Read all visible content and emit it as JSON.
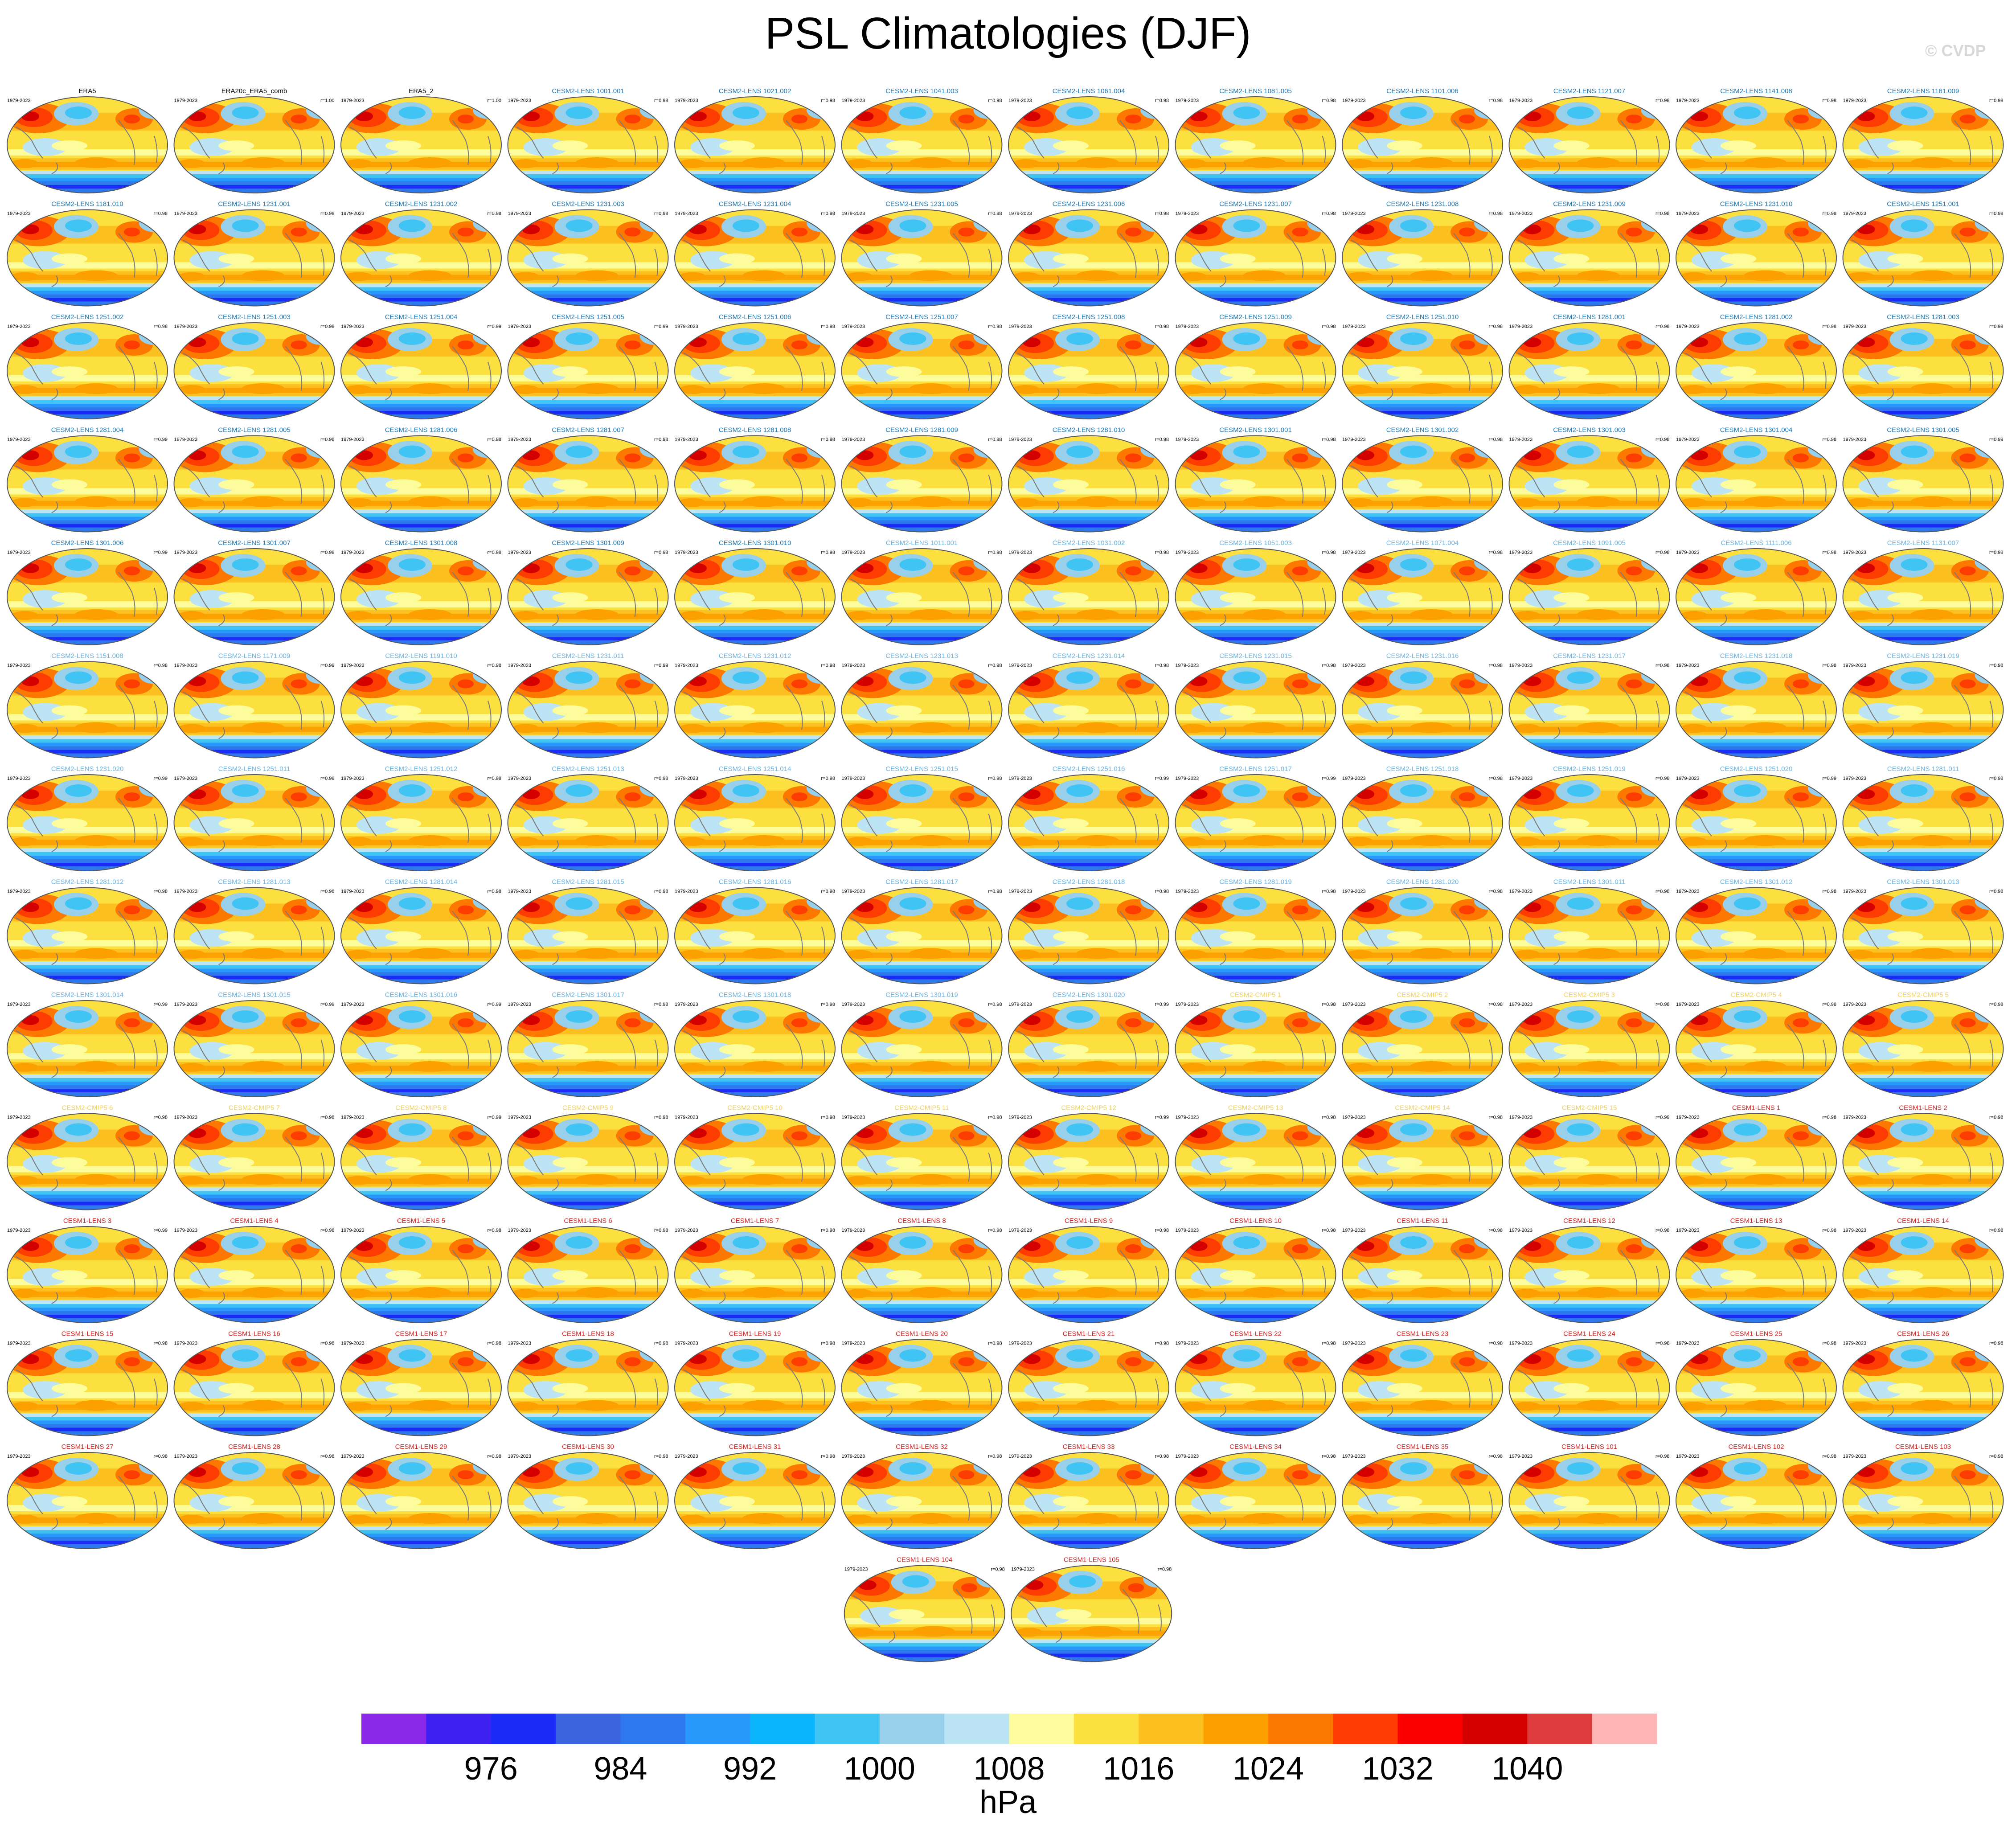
{
  "figure": {
    "title": "PSL Climatologies (DJF)",
    "credit": "© CVDP"
  },
  "chart_data": {
    "type": "heatmap",
    "title": "PSL Climatologies (DJF)",
    "panel_period": "1979-2023",
    "panels": [
      {
        "name": "ERA5",
        "r": "",
        "group": "obs"
      },
      {
        "name": "ERA20c_ERA5_comb",
        "r": "r=1.00",
        "group": "obs"
      },
      {
        "name": "ERA5_2",
        "r": "r=1.00",
        "group": "obs"
      },
      {
        "name": "CESM2-LENS 1001.001",
        "r": "r=0.98",
        "group": "cesm2"
      },
      {
        "name": "CESM2-LENS 1021.002",
        "r": "r=0.98",
        "group": "cesm2"
      },
      {
        "name": "CESM2-LENS 1041.003",
        "r": "r=0.98",
        "group": "cesm2"
      },
      {
        "name": "CESM2-LENS 1061.004",
        "r": "r=0.98",
        "group": "cesm2"
      },
      {
        "name": "CESM2-LENS 1081.005",
        "r": "r=0.98",
        "group": "cesm2"
      },
      {
        "name": "CESM2-LENS 1101.006",
        "r": "r=0.98",
        "group": "cesm2"
      },
      {
        "name": "CESM2-LENS 1121.007",
        "r": "r=0.98",
        "group": "cesm2"
      },
      {
        "name": "CESM2-LENS 1141.008",
        "r": "r=0.98",
        "group": "cesm2"
      },
      {
        "name": "CESM2-LENS 1161.009",
        "r": "r=0.98",
        "group": "cesm2"
      },
      {
        "name": "CESM2-LENS 1181.010",
        "r": "r=0.98",
        "group": "cesm2"
      },
      {
        "name": "CESM2-LENS 1231.001",
        "r": "r=0.98",
        "group": "cesm2"
      },
      {
        "name": "CESM2-LENS 1231.002",
        "r": "r=0.98",
        "group": "cesm2"
      },
      {
        "name": "CESM2-LENS 1231.003",
        "r": "r=0.98",
        "group": "cesm2"
      },
      {
        "name": "CESM2-LENS 1231.004",
        "r": "r=0.98",
        "group": "cesm2"
      },
      {
        "name": "CESM2-LENS 1231.005",
        "r": "r=0.98",
        "group": "cesm2"
      },
      {
        "name": "CESM2-LENS 1231.006",
        "r": "r=0.98",
        "group": "cesm2"
      },
      {
        "name": "CESM2-LENS 1231.007",
        "r": "r=0.98",
        "group": "cesm2"
      },
      {
        "name": "CESM2-LENS 1231.008",
        "r": "r=0.98",
        "group": "cesm2"
      },
      {
        "name": "CESM2-LENS 1231.009",
        "r": "r=0.98",
        "group": "cesm2"
      },
      {
        "name": "CESM2-LENS 1231.010",
        "r": "r=0.98",
        "group": "cesm2"
      },
      {
        "name": "CESM2-LENS 1251.001",
        "r": "r=0.98",
        "group": "cesm2"
      },
      {
        "name": "CESM2-LENS 1251.002",
        "r": "r=0.98",
        "group": "cesm2"
      },
      {
        "name": "CESM2-LENS 1251.003",
        "r": "r=0.98",
        "group": "cesm2"
      },
      {
        "name": "CESM2-LENS 1251.004",
        "r": "r=0.99",
        "group": "cesm2"
      },
      {
        "name": "CESM2-LENS 1251.005",
        "r": "r=0.99",
        "group": "cesm2"
      },
      {
        "name": "CESM2-LENS 1251.006",
        "r": "r=0.98",
        "group": "cesm2"
      },
      {
        "name": "CESM2-LENS 1251.007",
        "r": "r=0.98",
        "group": "cesm2"
      },
      {
        "name": "CESM2-LENS 1251.008",
        "r": "r=0.98",
        "group": "cesm2"
      },
      {
        "name": "CESM2-LENS 1251.009",
        "r": "r=0.98",
        "group": "cesm2"
      },
      {
        "name": "CESM2-LENS 1251.010",
        "r": "r=0.98",
        "group": "cesm2"
      },
      {
        "name": "CESM2-LENS 1281.001",
        "r": "r=0.98",
        "group": "cesm2"
      },
      {
        "name": "CESM2-LENS 1281.002",
        "r": "r=0.98",
        "group": "cesm2"
      },
      {
        "name": "CESM2-LENS 1281.003",
        "r": "r=0.98",
        "group": "cesm2"
      },
      {
        "name": "CESM2-LENS 1281.004",
        "r": "r=0.99",
        "group": "cesm2"
      },
      {
        "name": "CESM2-LENS 1281.005",
        "r": "r=0.98",
        "group": "cesm2"
      },
      {
        "name": "CESM2-LENS 1281.006",
        "r": "r=0.98",
        "group": "cesm2"
      },
      {
        "name": "CESM2-LENS 1281.007",
        "r": "r=0.98",
        "group": "cesm2"
      },
      {
        "name": "CESM2-LENS 1281.008",
        "r": "r=0.98",
        "group": "cesm2"
      },
      {
        "name": "CESM2-LENS 1281.009",
        "r": "r=0.98",
        "group": "cesm2"
      },
      {
        "name": "CESM2-LENS 1281.010",
        "r": "r=0.98",
        "group": "cesm2"
      },
      {
        "name": "CESM2-LENS 1301.001",
        "r": "r=0.98",
        "group": "cesm2"
      },
      {
        "name": "CESM2-LENS 1301.002",
        "r": "r=0.98",
        "group": "cesm2"
      },
      {
        "name": "CESM2-LENS 1301.003",
        "r": "r=0.98",
        "group": "cesm2"
      },
      {
        "name": "CESM2-LENS 1301.004",
        "r": "r=0.98",
        "group": "cesm2"
      },
      {
        "name": "CESM2-LENS 1301.005",
        "r": "r=0.99",
        "group": "cesm2"
      },
      {
        "name": "CESM2-LENS 1301.006",
        "r": "r=0.99",
        "group": "cesm2"
      },
      {
        "name": "CESM2-LENS 1301.007",
        "r": "r=0.98",
        "group": "cesm2"
      },
      {
        "name": "CESM2-LENS 1301.008",
        "r": "r=0.98",
        "group": "cesm2"
      },
      {
        "name": "CESM2-LENS 1301.009",
        "r": "r=0.98",
        "group": "cesm2"
      },
      {
        "name": "CESM2-LENS 1301.010",
        "r": "r=0.98",
        "group": "cesm2"
      },
      {
        "name": "CESM2-LENS 1011.001",
        "r": "r=0.98",
        "group": "cesm2-light"
      },
      {
        "name": "CESM2-LENS 1031.002",
        "r": "r=0.98",
        "group": "cesm2-light"
      },
      {
        "name": "CESM2-LENS 1051.003",
        "r": "r=0.98",
        "group": "cesm2-light"
      },
      {
        "name": "CESM2-LENS 1071.004",
        "r": "r=0.98",
        "group": "cesm2-light"
      },
      {
        "name": "CESM2-LENS 1091.005",
        "r": "r=0.98",
        "group": "cesm2-light"
      },
      {
        "name": "CESM2-LENS 1111.006",
        "r": "r=0.98",
        "group": "cesm2-light"
      },
      {
        "name": "CESM2-LENS 1131.007",
        "r": "r=0.98",
        "group": "cesm2-light"
      },
      {
        "name": "CESM2-LENS 1151.008",
        "r": "r=0.98",
        "group": "cesm2-light"
      },
      {
        "name": "CESM2-LENS 1171.009",
        "r": "r=0.99",
        "group": "cesm2-light"
      },
      {
        "name": "CESM2-LENS 1191.010",
        "r": "r=0.98",
        "group": "cesm2-light"
      },
      {
        "name": "CESM2-LENS 1231.011",
        "r": "r=0.99",
        "group": "cesm2-light"
      },
      {
        "name": "CESM2-LENS 1231.012",
        "r": "r=0.98",
        "group": "cesm2-light"
      },
      {
        "name": "CESM2-LENS 1231.013",
        "r": "r=0.98",
        "group": "cesm2-light"
      },
      {
        "name": "CESM2-LENS 1231.014",
        "r": "r=0.98",
        "group": "cesm2-light"
      },
      {
        "name": "CESM2-LENS 1231.015",
        "r": "r=0.98",
        "group": "cesm2-light"
      },
      {
        "name": "CESM2-LENS 1231.016",
        "r": "r=0.98",
        "group": "cesm2-light"
      },
      {
        "name": "CESM2-LENS 1231.017",
        "r": "r=0.98",
        "group": "cesm2-light"
      },
      {
        "name": "CESM2-LENS 1231.018",
        "r": "r=0.98",
        "group": "cesm2-light"
      },
      {
        "name": "CESM2-LENS 1231.019",
        "r": "r=0.98",
        "group": "cesm2-light"
      },
      {
        "name": "CESM2-LENS 1231.020",
        "r": "r=0.99",
        "group": "cesm2-light"
      },
      {
        "name": "CESM2-LENS 1251.011",
        "r": "r=0.98",
        "group": "cesm2-light"
      },
      {
        "name": "CESM2-LENS 1251.012",
        "r": "r=0.98",
        "group": "cesm2-light"
      },
      {
        "name": "CESM2-LENS 1251.013",
        "r": "r=0.98",
        "group": "cesm2-light"
      },
      {
        "name": "CESM2-LENS 1251.014",
        "r": "r=0.98",
        "group": "cesm2-light"
      },
      {
        "name": "CESM2-LENS 1251.015",
        "r": "r=0.98",
        "group": "cesm2-light"
      },
      {
        "name": "CESM2-LENS 1251.016",
        "r": "r=0.99",
        "group": "cesm2-light"
      },
      {
        "name": "CESM2-LENS 1251.017",
        "r": "r=0.99",
        "group": "cesm2-light"
      },
      {
        "name": "CESM2-LENS 1251.018",
        "r": "r=0.98",
        "group": "cesm2-light"
      },
      {
        "name": "CESM2-LENS 1251.019",
        "r": "r=0.98",
        "group": "cesm2-light"
      },
      {
        "name": "CESM2-LENS 1251.020",
        "r": "r=0.99",
        "group": "cesm2-light"
      },
      {
        "name": "CESM2-LENS 1281.011",
        "r": "r=0.98",
        "group": "cesm2-light"
      },
      {
        "name": "CESM2-LENS 1281.012",
        "r": "r=0.98",
        "group": "cesm2-light"
      },
      {
        "name": "CESM2-LENS 1281.013",
        "r": "r=0.98",
        "group": "cesm2-light"
      },
      {
        "name": "CESM2-LENS 1281.014",
        "r": "r=0.98",
        "group": "cesm2-light"
      },
      {
        "name": "CESM2-LENS 1281.015",
        "r": "r=0.98",
        "group": "cesm2-light"
      },
      {
        "name": "CESM2-LENS 1281.016",
        "r": "r=0.98",
        "group": "cesm2-light"
      },
      {
        "name": "CESM2-LENS 1281.017",
        "r": "r=0.98",
        "group": "cesm2-light"
      },
      {
        "name": "CESM2-LENS 1281.018",
        "r": "r=0.98",
        "group": "cesm2-light"
      },
      {
        "name": "CESM2-LENS 1281.019",
        "r": "r=0.98",
        "group": "cesm2-light"
      },
      {
        "name": "CESM2-LENS 1281.020",
        "r": "r=0.98",
        "group": "cesm2-light"
      },
      {
        "name": "CESM2-LENS 1301.011",
        "r": "r=0.98",
        "group": "cesm2-light"
      },
      {
        "name": "CESM2-LENS 1301.012",
        "r": "r=0.98",
        "group": "cesm2-light"
      },
      {
        "name": "CESM2-LENS 1301.013",
        "r": "r=0.98",
        "group": "cesm2-light"
      },
      {
        "name": "CESM2-LENS 1301.014",
        "r": "r=0.99",
        "group": "cesm2-light"
      },
      {
        "name": "CESM2-LENS 1301.015",
        "r": "r=0.99",
        "group": "cesm2-light"
      },
      {
        "name": "CESM2-LENS 1301.016",
        "r": "r=0.99",
        "group": "cesm2-light"
      },
      {
        "name": "CESM2-LENS 1301.017",
        "r": "r=0.98",
        "group": "cesm2-light"
      },
      {
        "name": "CESM2-LENS 1301.018",
        "r": "r=0.98",
        "group": "cesm2-light"
      },
      {
        "name": "CESM2-LENS 1301.019",
        "r": "r=0.98",
        "group": "cesm2-light"
      },
      {
        "name": "CESM2-LENS 1301.020",
        "r": "r=0.99",
        "group": "cesm2-light"
      },
      {
        "name": "CESM2-CMIP5 1",
        "r": "r=0.98",
        "group": "cmip5"
      },
      {
        "name": "CESM2-CMIP5 2",
        "r": "r=0.98",
        "group": "cmip5"
      },
      {
        "name": "CESM2-CMIP5 3",
        "r": "r=0.98",
        "group": "cmip5"
      },
      {
        "name": "CESM2-CMIP5 4",
        "r": "r=0.98",
        "group": "cmip5"
      },
      {
        "name": "CESM2-CMIP5 5",
        "r": "r=0.98",
        "group": "cmip5"
      },
      {
        "name": "CESM2-CMIP5 6",
        "r": "r=0.98",
        "group": "cmip5"
      },
      {
        "name": "CESM2-CMIP5 7",
        "r": "r=0.98",
        "group": "cmip5"
      },
      {
        "name": "CESM2-CMIP5 8",
        "r": "r=0.99",
        "group": "cmip5"
      },
      {
        "name": "CESM2-CMIP5 9",
        "r": "r=0.98",
        "group": "cmip5"
      },
      {
        "name": "CESM2-CMIP5 10",
        "r": "r=0.98",
        "group": "cmip5"
      },
      {
        "name": "CESM2-CMIP5 11",
        "r": "r=0.98",
        "group": "cmip5"
      },
      {
        "name": "CESM2-CMIP5 12",
        "r": "r=0.99",
        "group": "cmip5"
      },
      {
        "name": "CESM2-CMIP5 13",
        "r": "r=0.98",
        "group": "cmip5"
      },
      {
        "name": "CESM2-CMIP5 14",
        "r": "r=0.98",
        "group": "cmip5"
      },
      {
        "name": "CESM2-CMIP5 15",
        "r": "r=0.99",
        "group": "cmip5"
      },
      {
        "name": "CESM1-LENS 1",
        "r": "r=0.98",
        "group": "cesm1"
      },
      {
        "name": "CESM1-LENS 2",
        "r": "r=0.98",
        "group": "cesm1"
      },
      {
        "name": "CESM1-LENS 3",
        "r": "r=0.99",
        "group": "cesm1"
      },
      {
        "name": "CESM1-LENS 4",
        "r": "r=0.98",
        "group": "cesm1"
      },
      {
        "name": "CESM1-LENS 5",
        "r": "r=0.98",
        "group": "cesm1"
      },
      {
        "name": "CESM1-LENS 6",
        "r": "r=0.98",
        "group": "cesm1"
      },
      {
        "name": "CESM1-LENS 7",
        "r": "r=0.98",
        "group": "cesm1"
      },
      {
        "name": "CESM1-LENS 8",
        "r": "r=0.98",
        "group": "cesm1"
      },
      {
        "name": "CESM1-LENS 9",
        "r": "r=0.98",
        "group": "cesm1"
      },
      {
        "name": "CESM1-LENS 10",
        "r": "r=0.98",
        "group": "cesm1"
      },
      {
        "name": "CESM1-LENS 11",
        "r": "r=0.98",
        "group": "cesm1"
      },
      {
        "name": "CESM1-LENS 12",
        "r": "r=0.98",
        "group": "cesm1"
      },
      {
        "name": "CESM1-LENS 13",
        "r": "r=0.98",
        "group": "cesm1"
      },
      {
        "name": "CESM1-LENS 14",
        "r": "r=0.98",
        "group": "cesm1"
      },
      {
        "name": "CESM1-LENS 15",
        "r": "r=0.98",
        "group": "cesm1"
      },
      {
        "name": "CESM1-LENS 16",
        "r": "r=0.98",
        "group": "cesm1"
      },
      {
        "name": "CESM1-LENS 17",
        "r": "r=0.98",
        "group": "cesm1"
      },
      {
        "name": "CESM1-LENS 18",
        "r": "r=0.98",
        "group": "cesm1"
      },
      {
        "name": "CESM1-LENS 19",
        "r": "r=0.98",
        "group": "cesm1"
      },
      {
        "name": "CESM1-LENS 20",
        "r": "r=0.98",
        "group": "cesm1"
      },
      {
        "name": "CESM1-LENS 21",
        "r": "r=0.98",
        "group": "cesm1"
      },
      {
        "name": "CESM1-LENS 22",
        "r": "r=0.98",
        "group": "cesm1"
      },
      {
        "name": "CESM1-LENS 23",
        "r": "r=0.98",
        "group": "cesm1"
      },
      {
        "name": "CESM1-LENS 24",
        "r": "r=0.98",
        "group": "cesm1"
      },
      {
        "name": "CESM1-LENS 25",
        "r": "r=0.98",
        "group": "cesm1"
      },
      {
        "name": "CESM1-LENS 26",
        "r": "r=0.98",
        "group": "cesm1"
      },
      {
        "name": "CESM1-LENS 27",
        "r": "r=0.98",
        "group": "cesm1"
      },
      {
        "name": "CESM1-LENS 28",
        "r": "r=0.98",
        "group": "cesm1"
      },
      {
        "name": "CESM1-LENS 29",
        "r": "r=0.98",
        "group": "cesm1"
      },
      {
        "name": "CESM1-LENS 30",
        "r": "r=0.98",
        "group": "cesm1"
      },
      {
        "name": "CESM1-LENS 31",
        "r": "r=0.98",
        "group": "cesm1"
      },
      {
        "name": "CESM1-LENS 32",
        "r": "r=0.98",
        "group": "cesm1"
      },
      {
        "name": "CESM1-LENS 33",
        "r": "r=0.98",
        "group": "cesm1"
      },
      {
        "name": "CESM1-LENS 34",
        "r": "r=0.98",
        "group": "cesm1"
      },
      {
        "name": "CESM1-LENS 35",
        "r": "r=0.98",
        "group": "cesm1"
      },
      {
        "name": "CESM1-LENS 101",
        "r": "r=0.98",
        "group": "cesm1"
      },
      {
        "name": "CESM1-LENS 102",
        "r": "r=0.98",
        "group": "cesm1"
      },
      {
        "name": "CESM1-LENS 103",
        "r": "r=0.98",
        "group": "cesm1"
      },
      {
        "name": "CESM1-LENS 104",
        "r": "r=0.98",
        "group": "cesm1"
      },
      {
        "name": "CESM1-LENS 105",
        "r": "r=0.98",
        "group": "cesm1"
      }
    ],
    "group_colors": {
      "obs": "#000000",
      "cesm2": "#1f78b4",
      "cesm2-light": "#6bb3e0",
      "cmip5": "#f2d25c",
      "cesm1": "#d62020"
    },
    "colorbar": {
      "unit": "hPa",
      "colors": [
        "#8c28e8",
        "#3e20f0",
        "#1c2cf8",
        "#3c64e0",
        "#2c78ec",
        "#2898fc",
        "#0cb4fc",
        "#40c4f4",
        "#98d0ec",
        "#bce4f4",
        "#fcfc9c",
        "#fce040",
        "#fcc020",
        "#fca000",
        "#fc7800",
        "#fc3c00",
        "#fc0000",
        "#d40000",
        "#dc3c3c",
        "#fcb4b4"
      ],
      "tick_labels": [
        "976",
        "984",
        "992",
        "1000",
        "1008",
        "1016",
        "1024",
        "1032",
        "1040"
      ]
    }
  }
}
